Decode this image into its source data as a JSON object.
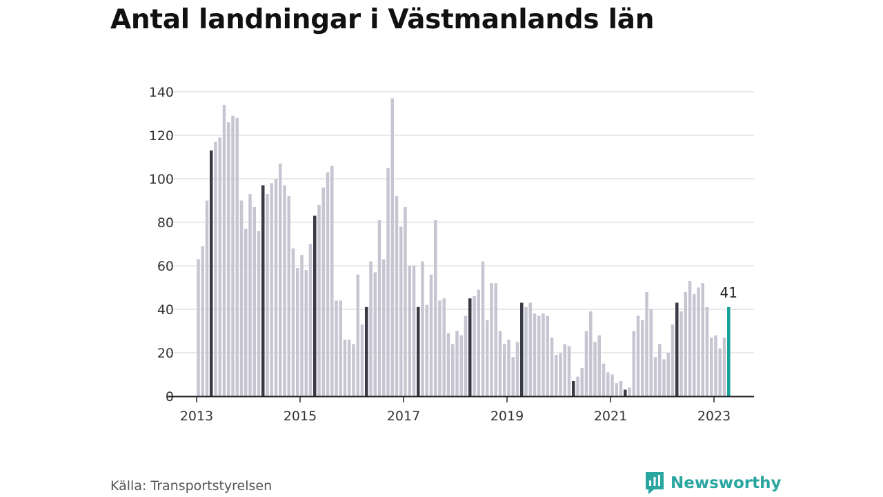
{
  "header": {
    "title": "Antal landningar i Västmanlands län"
  },
  "footer": {
    "source": "Källa: Transportstyrelsen",
    "brand": "Newsworthy"
  },
  "colors": {
    "bar": "#c6c6d2",
    "highlight": "#3a3a46",
    "latest": "#16a39c",
    "grid": "#dcdcdc",
    "axis": "#222222",
    "brand": "#2aa6a0"
  },
  "chart_data": {
    "type": "bar",
    "start": "2013-01",
    "x_tick_labels": [
      "2013",
      "2015",
      "2017",
      "2019",
      "2021",
      "2023"
    ],
    "y_ticks": [
      0,
      20,
      40,
      60,
      80,
      100,
      120,
      140
    ],
    "ylim": [
      0,
      140
    ],
    "grid": true,
    "highlight_month": "April",
    "callout": "41",
    "values": [
      63,
      69,
      90,
      113,
      117,
      119,
      134,
      126,
      129,
      128,
      90,
      77,
      93,
      87,
      76,
      97,
      93,
      98,
      100,
      107,
      97,
      92,
      68,
      59,
      65,
      58,
      70,
      83,
      88,
      96,
      103,
      106,
      44,
      44,
      26,
      26,
      24,
      56,
      33,
      41,
      62,
      57,
      81,
      63,
      105,
      137,
      92,
      78,
      87,
      60,
      60,
      41,
      62,
      42,
      56,
      81,
      44,
      45,
      29,
      24,
      30,
      28,
      37,
      45,
      46,
      49,
      62,
      35,
      52,
      52,
      30,
      24,
      26,
      18,
      25,
      43,
      41,
      43,
      38,
      37,
      38,
      37,
      27,
      19,
      20,
      24,
      23,
      7,
      9,
      13,
      30,
      39,
      25,
      28,
      15,
      11,
      10,
      6,
      7,
      3,
      4,
      30,
      37,
      35,
      48,
      40,
      18,
      24,
      17,
      20,
      33,
      43,
      39,
      48,
      53,
      47,
      50,
      52,
      41,
      27,
      28,
      22,
      27,
      41
    ]
  }
}
